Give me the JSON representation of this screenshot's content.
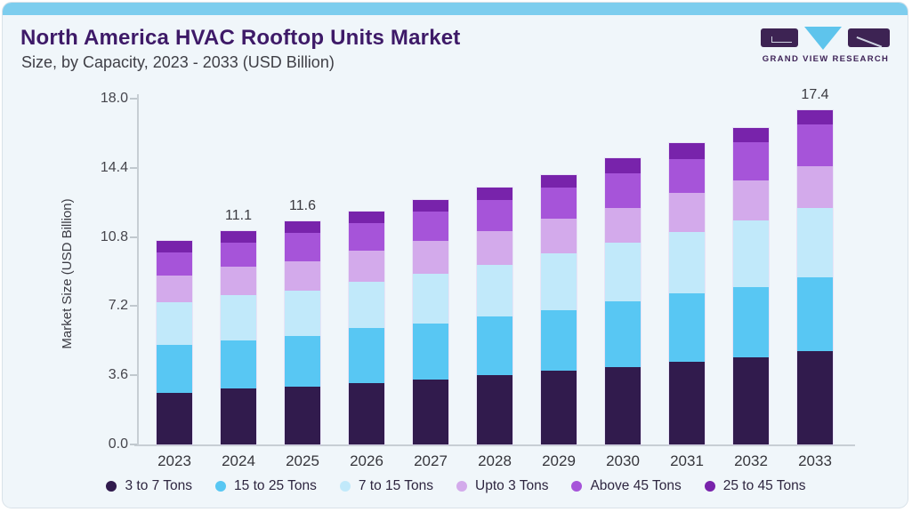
{
  "header": {
    "title": "North America HVAC Rooftop Units Market",
    "subtitle": "Size, by Capacity, 2023 - 2033 (USD Billion)"
  },
  "brand": {
    "name": "GRAND VIEW RESEARCH",
    "logo_purple": "#3d2353",
    "logo_cyan": "#5ec4ec"
  },
  "colors": {
    "card_background": "#f0f6fa",
    "accent_bar": "#7dcdee",
    "title_text": "#3e1a68",
    "axis_line": "#c7ced4"
  },
  "chart_data": {
    "type": "bar",
    "stacked": true,
    "title": "North America HVAC Rooftop Units Market Size, by Capacity, 2023 - 2033 (USD Billion)",
    "xlabel": "",
    "ylabel": "Market Size (USD Billion)",
    "ylim": [
      0,
      18
    ],
    "y_ticks": [
      "0.0",
      "3.6",
      "7.2",
      "10.8",
      "14.4",
      "18.0"
    ],
    "grid": false,
    "legend_position": "bottom",
    "categories": [
      "2023",
      "2024",
      "2025",
      "2026",
      "2027",
      "2028",
      "2029",
      "2030",
      "2031",
      "2032",
      "2033"
    ],
    "series": [
      {
        "name": "3 to 7 Tons",
        "color": "#311b4d",
        "values": [
          2.7,
          2.9,
          3.0,
          3.2,
          3.4,
          3.6,
          3.85,
          4.05,
          4.3,
          4.55,
          4.85
        ]
      },
      {
        "name": "15 to 25 Tons",
        "color": "#58c7f3",
        "values": [
          2.5,
          2.5,
          2.65,
          2.85,
          2.9,
          3.05,
          3.15,
          3.4,
          3.55,
          3.65,
          3.85
        ]
      },
      {
        "name": "7 to 15 Tons",
        "color": "#c1e9fa",
        "values": [
          2.2,
          2.4,
          2.35,
          2.4,
          2.6,
          2.7,
          2.95,
          3.05,
          3.2,
          3.45,
          3.6
        ]
      },
      {
        "name": "Upto 3 Tons",
        "color": "#d3aaeb",
        "values": [
          1.4,
          1.45,
          1.55,
          1.65,
          1.7,
          1.75,
          1.8,
          1.8,
          2.05,
          2.1,
          2.2
        ]
      },
      {
        "name": "Above 45 Tons",
        "color": "#a654d9",
        "values": [
          1.2,
          1.25,
          1.45,
          1.45,
          1.55,
          1.65,
          1.65,
          1.8,
          1.75,
          2.0,
          2.15
        ]
      },
      {
        "name": "25 to 45 Tons",
        "color": "#7823ab",
        "values": [
          0.6,
          0.6,
          0.6,
          0.6,
          0.6,
          0.65,
          0.65,
          0.8,
          0.85,
          0.75,
          0.75
        ]
      }
    ],
    "bar_total_labels": [
      "",
      "11.1",
      "11.6",
      "",
      "",
      "",
      "",
      "",
      "",
      "",
      "17.4"
    ],
    "labeled_totals": {
      "2024": 11.1,
      "2025": 11.6,
      "2033": 17.4
    }
  }
}
